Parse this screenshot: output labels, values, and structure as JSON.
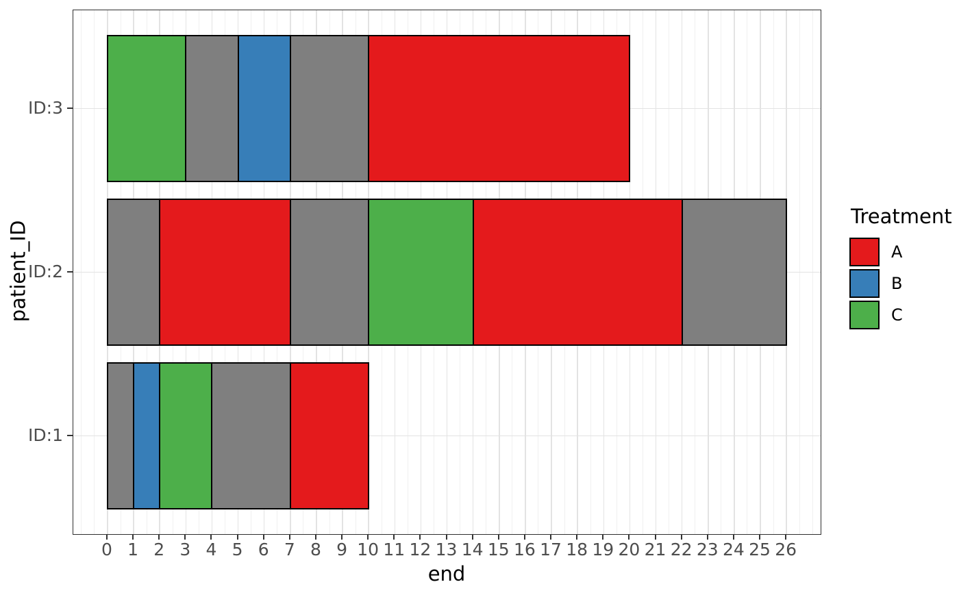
{
  "chart_data": {
    "type": "bar",
    "subtype": "horizontal-stacked-swimmer",
    "title": "",
    "xlabel": "end",
    "ylabel": "patient_ID",
    "x_ticks": [
      0,
      1,
      2,
      3,
      4,
      5,
      6,
      7,
      8,
      9,
      10,
      11,
      12,
      13,
      14,
      15,
      16,
      17,
      18,
      19,
      20,
      21,
      22,
      23,
      24,
      25,
      26
    ],
    "xlim": [
      -1.3,
      27.3
    ],
    "minor_grid_step": 0.5,
    "grid": {
      "major": true,
      "minor": true
    },
    "y_categories": [
      "ID:1",
      "ID:2",
      "ID:3"
    ],
    "legend": {
      "title": "Treatment",
      "position": "right",
      "entries": [
        {
          "label": "A",
          "color": "#E41A1C"
        },
        {
          "label": "B",
          "color": "#377EB8"
        },
        {
          "label": "C",
          "color": "#4DAF4A"
        }
      ]
    },
    "bars": [
      {
        "patient": "ID:3",
        "segments": [
          {
            "start": 0,
            "end": 3,
            "treatment": "C"
          },
          {
            "start": 3,
            "end": 5,
            "treatment": null
          },
          {
            "start": 5,
            "end": 7,
            "treatment": "B"
          },
          {
            "start": 7,
            "end": 10,
            "treatment": null
          },
          {
            "start": 10,
            "end": 20,
            "treatment": "A"
          }
        ]
      },
      {
        "patient": "ID:2",
        "segments": [
          {
            "start": 0,
            "end": 2,
            "treatment": null
          },
          {
            "start": 2,
            "end": 7,
            "treatment": "A"
          },
          {
            "start": 7,
            "end": 10,
            "treatment": null
          },
          {
            "start": 10,
            "end": 14,
            "treatment": "C"
          },
          {
            "start": 14,
            "end": 22,
            "treatment": "A"
          },
          {
            "start": 22,
            "end": 26,
            "treatment": null
          }
        ]
      },
      {
        "patient": "ID:1",
        "segments": [
          {
            "start": 0,
            "end": 1,
            "treatment": null
          },
          {
            "start": 1,
            "end": 2,
            "treatment": "B"
          },
          {
            "start": 2,
            "end": 4,
            "treatment": "C"
          },
          {
            "start": 4,
            "end": 7,
            "treatment": null
          },
          {
            "start": 7,
            "end": 10,
            "treatment": "A"
          }
        ]
      }
    ]
  },
  "colors": {
    "A": "#E41A1C",
    "B": "#377EB8",
    "C": "#4DAF4A",
    "NA": "#7F7F7F",
    "axis_text": "#4D4D4D",
    "panel_border": "#2F2F2F",
    "grid_major": "#E3E3E3",
    "grid_minor": "#F0F0F0",
    "segment_stroke": "#000000"
  }
}
